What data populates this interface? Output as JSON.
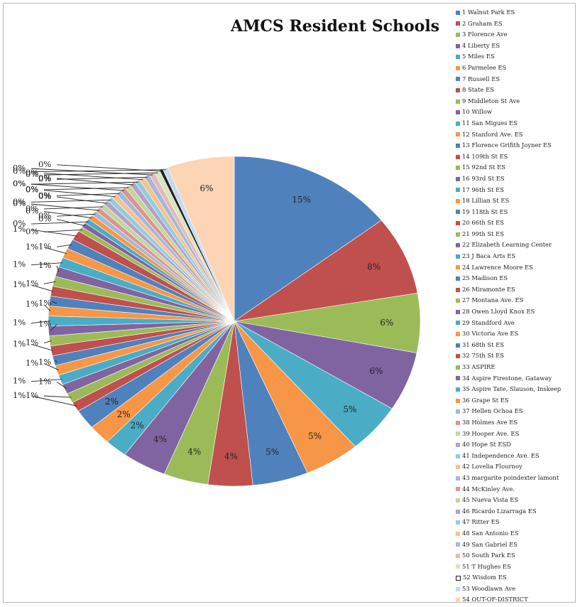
{
  "chart_data": {
    "type": "pie",
    "title": "AMCS Resident Schools",
    "legend_position": "right",
    "start_angle_deg": 0,
    "slices": [
      {
        "label": "1 Walnut Park ES",
        "value": 15,
        "display": "15%",
        "color": "#4f81bd"
      },
      {
        "label": "2 Graham ES",
        "value": 8,
        "display": "8%",
        "color": "#c0504d"
      },
      {
        "label": "3 Florence Ave",
        "value": 6,
        "display": "6%",
        "color": "#9bbb59"
      },
      {
        "label": "4 Liberty ES",
        "value": 6,
        "display": "6%",
        "color": "#8064a2"
      },
      {
        "label": "5 Miles ES",
        "value": 5,
        "display": "5%",
        "color": "#4bacc6"
      },
      {
        "label": "6 Parmelee ES",
        "value": 5,
        "display": "5%",
        "color": "#f79646"
      },
      {
        "label": "7 Russell ES",
        "value": 5,
        "display": "5%",
        "color": "#4f81bd"
      },
      {
        "label": "8 State ES",
        "value": 4,
        "display": "4%",
        "color": "#c0504d"
      },
      {
        "label": "9 Middleton St Ave",
        "value": 4,
        "display": "4%",
        "color": "#9bbb59"
      },
      {
        "label": "10 Willow",
        "value": 4,
        "display": "4%",
        "color": "#8064a2"
      },
      {
        "label": "11 San Migues ES",
        "value": 2,
        "display": "2%",
        "color": "#4bacc6"
      },
      {
        "label": "12 Stanford Ave. ES",
        "value": 2,
        "display": "2%",
        "color": "#f79646"
      },
      {
        "label": "13 Florence Grifith Joyner ES",
        "value": 2,
        "display": "2%",
        "color": "#4f81bd"
      },
      {
        "label": "14 109th St ES",
        "value": 1,
        "display": "1%",
        "color": "#c0504d"
      },
      {
        "label": "15 92nd St ES",
        "value": 1,
        "display": "1%",
        "color": "#9bbb59"
      },
      {
        "label": "16 93rd St ES",
        "value": 1,
        "display": "1%",
        "color": "#8064a2"
      },
      {
        "label": "17 96th St ES",
        "value": 1,
        "display": "1%",
        "color": "#4bacc6"
      },
      {
        "label": "18 Lillian St ES",
        "value": 1,
        "display": "1%",
        "color": "#f79646"
      },
      {
        "label": "19 118th St ES",
        "value": 1,
        "display": "1%",
        "color": "#4f81bd"
      },
      {
        "label": "20 66th St ES",
        "value": 1,
        "display": "1%",
        "color": "#c0504d"
      },
      {
        "label": "21 99th St ES",
        "value": 1,
        "display": "1%",
        "color": "#9bbb59"
      },
      {
        "label": "22 Elizabeth Learning Center",
        "value": 1,
        "display": "1%",
        "color": "#8064a2"
      },
      {
        "label": "23 J Baca Arts ES",
        "value": 1,
        "display": "1%",
        "color": "#4bacc6"
      },
      {
        "label": "24 Lawrence Moore ES",
        "value": 1,
        "display": "1%",
        "color": "#f79646"
      },
      {
        "label": "25 Madison ES",
        "value": 1,
        "display": "1%",
        "color": "#4f81bd"
      },
      {
        "label": "26 Miramonte ES",
        "value": 1,
        "display": "1%",
        "color": "#c0504d"
      },
      {
        "label": "27 Montana Ave. ES",
        "value": 1,
        "display": "1%",
        "color": "#9bbb59"
      },
      {
        "label": "28 Owen Lloyd Knox ES",
        "value": 1,
        "display": "1%",
        "color": "#8064a2"
      },
      {
        "label": "29 Standford Ave",
        "value": 1,
        "display": "1%",
        "color": "#4bacc6"
      },
      {
        "label": "30 Victoria Ave ES",
        "value": 1,
        "display": "1%",
        "color": "#f79646"
      },
      {
        "label": "31 68th St ES",
        "value": 1,
        "display": "1%",
        "color": "#4f81bd"
      },
      {
        "label": "32 75th St ES",
        "value": 1,
        "display": "1%",
        "color": "#c0504d"
      },
      {
        "label": "33 ASPIRE",
        "value": 0.5,
        "display": "0%",
        "color": "#9bbb59"
      },
      {
        "label": "34 Aspire Firestone, Gataway",
        "value": 0.5,
        "display": "0%",
        "color": "#8064a2"
      },
      {
        "label": "35 Aspire Tate, Slauson, Inskeep",
        "value": 0.5,
        "display": "0%",
        "color": "#4bacc6"
      },
      {
        "label": "36 Grape St ES",
        "value": 0.5,
        "display": "0%",
        "color": "#f79646"
      },
      {
        "label": "37 Hellen Ochoa ES",
        "value": 0.5,
        "display": "0%",
        "color": "#a5b8d6"
      },
      {
        "label": "38 Holmes Ave ES",
        "value": 0.5,
        "display": "0%",
        "color": "#d99694"
      },
      {
        "label": "39 Hooper Ave. ES",
        "value": 0.5,
        "display": "0%",
        "color": "#c3d69b"
      },
      {
        "label": "40 Hope St ESD",
        "value": 0.5,
        "display": "0%",
        "color": "#b3a2c7"
      },
      {
        "label": "41 Independence Ave. ES",
        "value": 0.5,
        "display": "0%",
        "color": "#93cddd"
      },
      {
        "label": "42 Lovelia Flournoy",
        "value": 0.5,
        "display": "0%",
        "color": "#fac090"
      },
      {
        "label": "43 margarite poindexter lamont",
        "value": 0.5,
        "display": "0%",
        "color": "#a5b8d6"
      },
      {
        "label": "44 McKinley Ave.",
        "value": 0.5,
        "display": "0%",
        "color": "#d99694"
      },
      {
        "label": "45 Nueva Vista ES",
        "value": 0.5,
        "display": "0%",
        "color": "#c3d69b"
      },
      {
        "label": "46 Ricardo Lizarraga ES",
        "value": 0.5,
        "display": "0%",
        "color": "#b3a2c7"
      },
      {
        "label": "47 Ritter ES",
        "value": 0.5,
        "display": "0%",
        "color": "#93cddd"
      },
      {
        "label": "48 San Antonio ES",
        "value": 0.5,
        "display": "0%",
        "color": "#fac090"
      },
      {
        "label": "49 San Gabriel ES",
        "value": 0.5,
        "display": "0%",
        "color": "#a5b8d6"
      },
      {
        "label": "50 South Park ES",
        "value": 0.5,
        "display": "0%",
        "color": "#e6b9b8"
      },
      {
        "label": "51 T Hughes ES",
        "value": 0.5,
        "display": "0%",
        "color": "#d7e4bd"
      },
      {
        "label": "52 Wisdom ES",
        "value": 0.3,
        "display": "0%",
        "color": "#1f1f1f"
      },
      {
        "label": "53 Woodlawn Ave",
        "value": 0.5,
        "display": "0%",
        "color": "#c6d9f1"
      },
      {
        "label": "54 OUT-OF-DISTRICT",
        "value": 6,
        "display": "6%",
        "color": "#fcd5b5"
      }
    ]
  }
}
